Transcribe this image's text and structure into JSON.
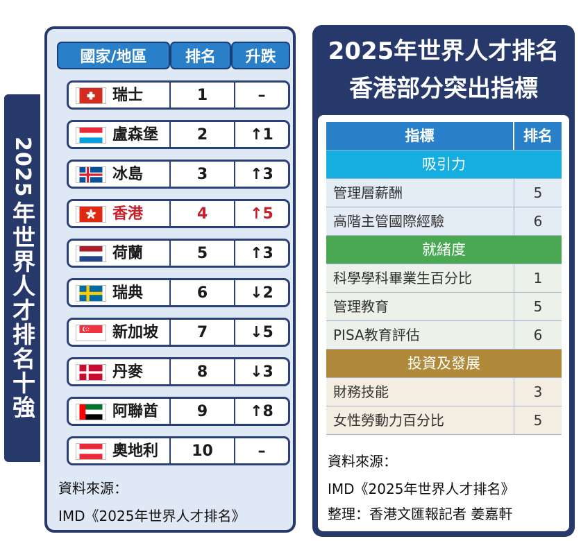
{
  "side_title": {
    "year": "2025",
    "text": "年世界人才排名十強"
  },
  "left": {
    "headers": {
      "country": "國家/地區",
      "rank": "排名",
      "change": "升跌"
    },
    "rows": [
      {
        "country": "瑞士",
        "rank": "1",
        "change": "–",
        "flag": "switzerland"
      },
      {
        "country": "盧森堡",
        "rank": "2",
        "change": "↑1",
        "flag": "luxembourg"
      },
      {
        "country": "冰島",
        "rank": "3",
        "change": "↑3",
        "flag": "iceland"
      },
      {
        "country": "香港",
        "rank": "4",
        "change": "↑5",
        "flag": "hong-kong"
      },
      {
        "country": "荷蘭",
        "rank": "5",
        "change": "↑3",
        "flag": "netherlands"
      },
      {
        "country": "瑞典",
        "rank": "6",
        "change": "↓2",
        "flag": "sweden"
      },
      {
        "country": "新加坡",
        "rank": "7",
        "change": "↓5",
        "flag": "singapore"
      },
      {
        "country": "丹麥",
        "rank": "8",
        "change": "↓3",
        "flag": "denmark"
      },
      {
        "country": "阿聯酋",
        "rank": "9",
        "change": "↑8",
        "flag": "uae"
      },
      {
        "country": "奧地利",
        "rank": "10",
        "change": "–",
        "flag": "austria"
      }
    ],
    "source_label": "資料來源：",
    "source_text": "IMD《2025年世界人才排名》"
  },
  "right": {
    "title_line1": "2025年世界人才排名",
    "title_line2": "香港部分突出指標",
    "headers": {
      "indicator": "指標",
      "rank": "排名"
    },
    "sections": [
      {
        "name": "吸引力",
        "color": "blue",
        "items": [
          {
            "label": "管理層薪酬",
            "rank": "5"
          },
          {
            "label": "高階主管國際經驗",
            "rank": "6"
          }
        ]
      },
      {
        "name": "就緒度",
        "color": "green",
        "items": [
          {
            "label": "科學學科畢業生百分比",
            "rank": "1"
          },
          {
            "label": "管理教育",
            "rank": "5"
          },
          {
            "label": "PISA教育評估",
            "rank": "6"
          }
        ]
      },
      {
        "name": "投資及發展",
        "color": "gold",
        "items": [
          {
            "label": "財務技能",
            "rank": "3"
          },
          {
            "label": "女性勞動力百分比",
            "rank": "5"
          }
        ]
      }
    ],
    "source_label": "資料來源：",
    "source_text": "IMD《2025年世界人才排名》",
    "editor": "整理：香港文匯報記者 姜嘉軒"
  },
  "colors": {
    "navy": "#27386b",
    "header_blue": "#2a7fc9",
    "highlight_red": "#c8202b",
    "cat_blue": "#14aee0",
    "cat_green": "#4aa852",
    "cat_gold": "#b08a3a"
  }
}
